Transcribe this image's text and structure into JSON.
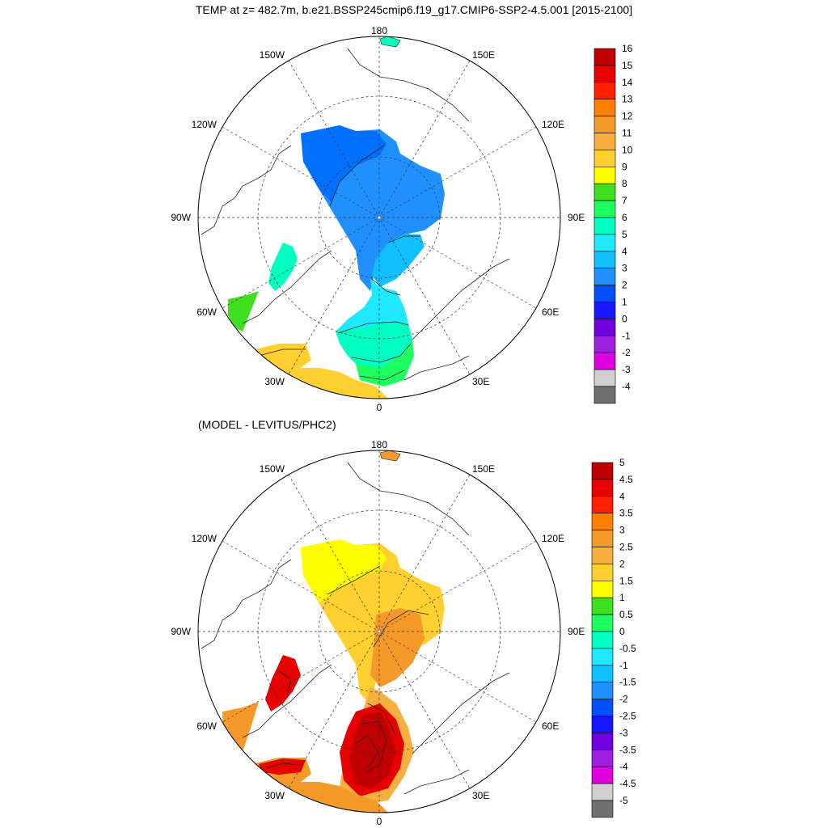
{
  "title": "TEMP at z= 482.7m, b.e21.BSSP245cmip6.f19_g17.CMIP6-SSP2-4.5.001 [2015-2100]",
  "subtitle": "(MODEL - LEVITUS/PHC2)",
  "map_labels": {
    "top": "180",
    "bottom": "0",
    "left": "90W",
    "right": "90E",
    "nw_outer": "150W",
    "ne_outer": "150E",
    "nw_inner": "120W",
    "ne_inner": "120E",
    "sw_inner": "60W",
    "se_inner": "60E",
    "sw_outer": "30W",
    "se_outer": "30E"
  },
  "colorbar_top": {
    "labels": [
      "16",
      "15",
      "14",
      "13",
      "12",
      "11",
      "10",
      "9",
      "8",
      "7",
      "6",
      "5",
      "4",
      "3",
      "2",
      "1",
      "0",
      "-1",
      "-2",
      "-3",
      "-4"
    ],
    "colors": [
      "#c00000",
      "#e60000",
      "#ff2000",
      "#ff8000",
      "#f59a2a",
      "#f7b040",
      "#ffd030",
      "#ffff00",
      "#40e020",
      "#20ff60",
      "#00ffc0",
      "#20e8ff",
      "#10c0ff",
      "#2090ff",
      "#0050ff",
      "#1818ff",
      "#7000e0",
      "#a020e0",
      "#e000e0",
      "#d0d0d0",
      "#707070"
    ]
  },
  "colorbar_bottom": {
    "labels": [
      "5",
      "4.5",
      "4",
      "3.5",
      "3",
      "2.5",
      "2",
      "1.5",
      "1",
      "0.5",
      "0",
      "-0.5",
      "-1",
      "-1.5",
      "-2",
      "-2.5",
      "-3",
      "-3.5",
      "-4",
      "-4.5",
      "-5"
    ],
    "colors": [
      "#c00000",
      "#e60000",
      "#ff2000",
      "#ff8000",
      "#f59a2a",
      "#f7b040",
      "#ffd030",
      "#ffff00",
      "#40e020",
      "#20ff60",
      "#00ffc0",
      "#20e8ff",
      "#10c0ff",
      "#2090ff",
      "#0050ff",
      "#1818ff",
      "#7000e0",
      "#a020e0",
      "#e000e0",
      "#d0d0d0",
      "#707070"
    ]
  },
  "field_colors_top": {
    "central_arctic": "#2090ff",
    "beaufort": "#0070ff",
    "barents": "#10c0ff",
    "fram": "#20e8ff",
    "norwegian": "#00ffc0",
    "nordic_south": "#20ff60",
    "baffin": "#00ffc0",
    "labrador": "#40e020",
    "north_atlantic": "#ffd030"
  },
  "field_colors_bottom": {
    "beaufort": "#ffff00",
    "central_arctic": "#ffd030",
    "barents": "#f59a2a",
    "fram": "#f7b040",
    "norwegian": "#e60000",
    "nordic_core": "#c00000",
    "baffin": "#e60000",
    "labrador": "#f59a2a",
    "north_atlantic": "#f59a2a",
    "irminger": "#e60000"
  }
}
